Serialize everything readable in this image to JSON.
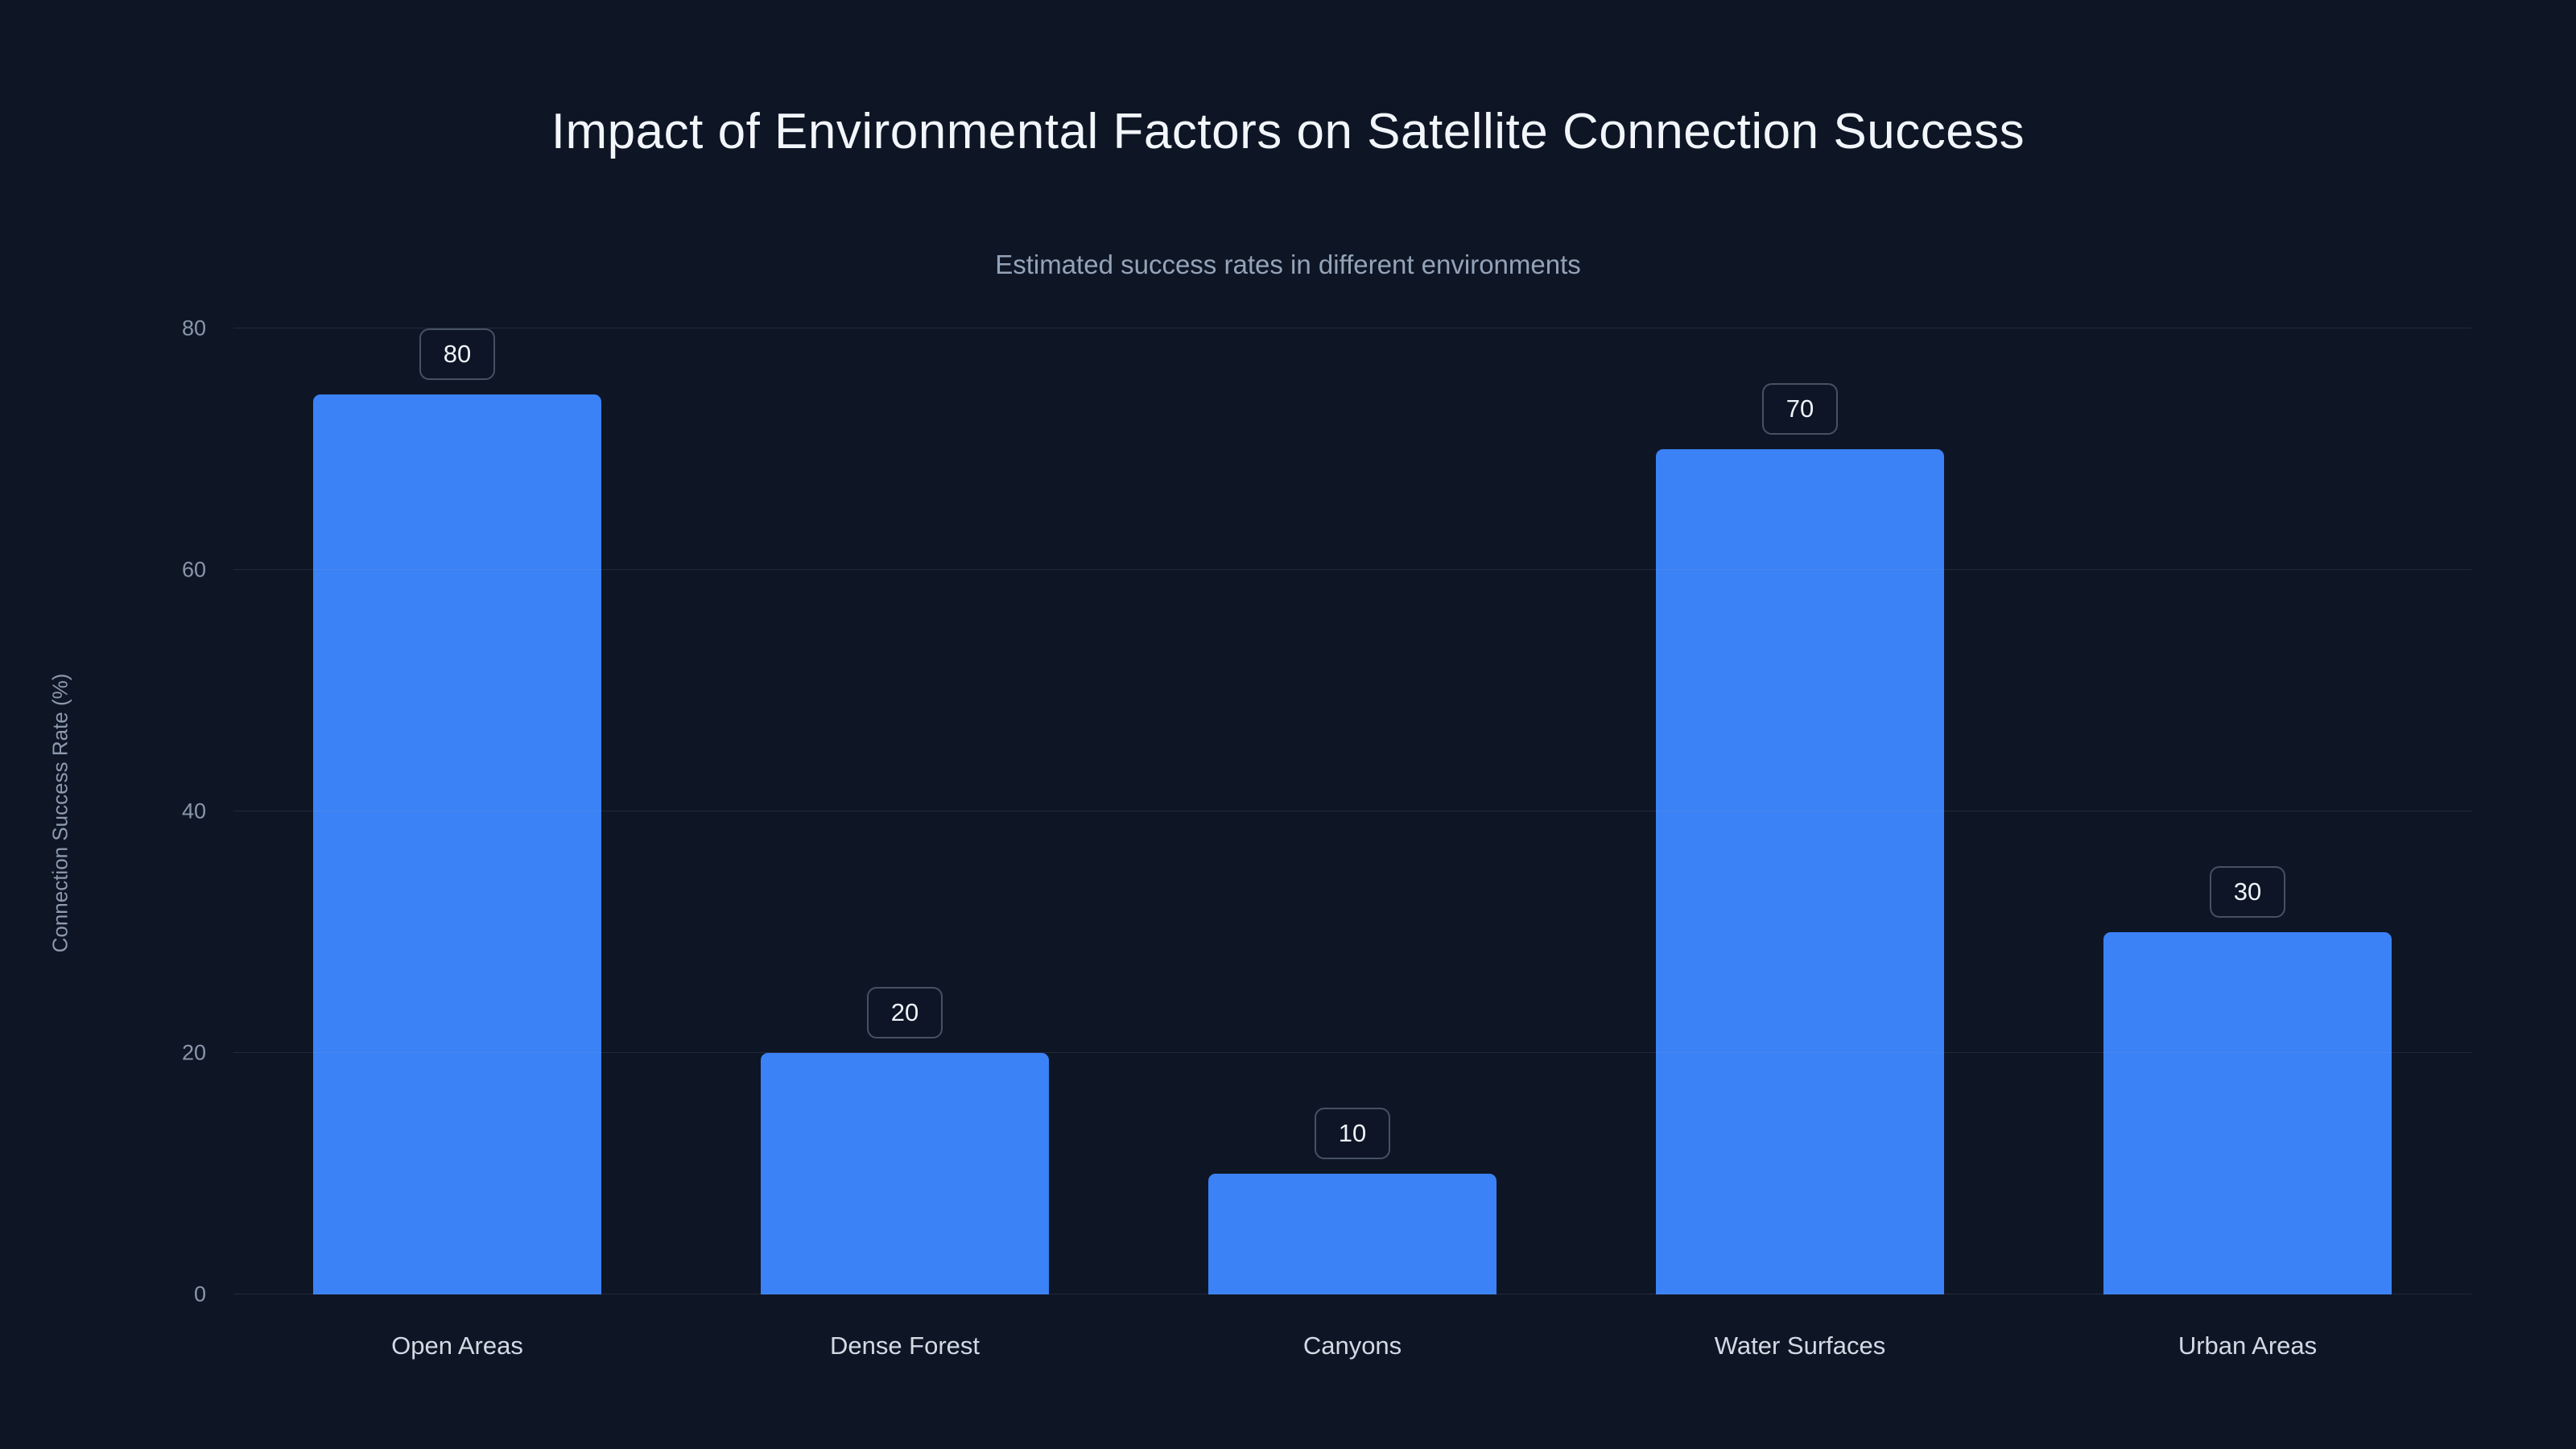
{
  "page": {
    "title": "Impact of Environmental Factors on Satellite Connection Success",
    "subtitle": "Estimated success rates in different environments"
  },
  "chart_data": {
    "type": "bar",
    "title": "Impact of Environmental Factors on Satellite Connection Success",
    "subtitle": "Estimated success rates in different environments",
    "categories": [
      "Open Areas",
      "Dense Forest",
      "Canyons",
      "Water Surfaces",
      "Urban Areas"
    ],
    "values": [
      80,
      20,
      10,
      70,
      30
    ],
    "xlabel": "",
    "ylabel": "Connection Success Rate (%)",
    "ylim": [
      0,
      80
    ],
    "yticks": [
      0,
      20,
      40,
      60,
      80
    ],
    "grid": true,
    "legend": false,
    "data_labels": true,
    "bar_color": "#3b82f6",
    "background_color": "#0e1626"
  }
}
